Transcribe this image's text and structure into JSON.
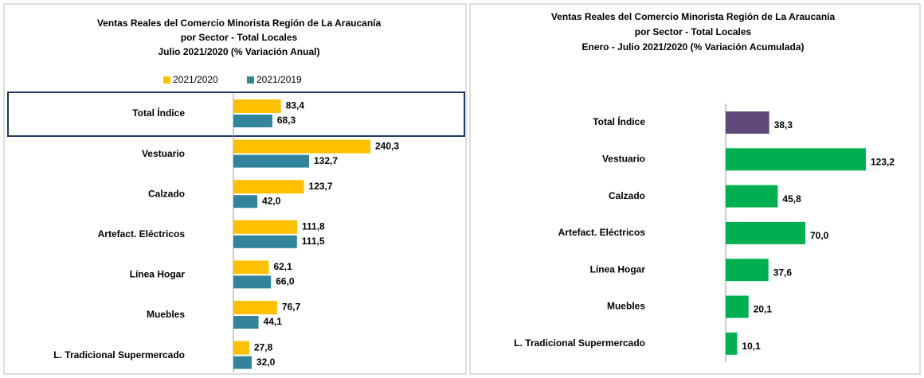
{
  "chart_data": [
    {
      "type": "bar",
      "orientation": "horizontal",
      "title": [
        "Ventas Reales del Comercio Minorista  Región de La Araucanía",
        "por Sector  - Total Locales",
        "Julio 2021/2020 (% Variación Anual)"
      ],
      "categories": [
        "Total Índice",
        "Vestuario",
        "Calzado",
        "Artefact. Eléctricos",
        "Línea Hogar",
        "Muebles",
        "L. Tradicional Supermercado"
      ],
      "series": [
        {
          "name": "2021/2020",
          "color": "#FFC000",
          "values": [
            83.4,
            240.3,
            123.7,
            111.8,
            62.1,
            76.7,
            27.8
          ],
          "value_labels": [
            "83,4",
            "240,3",
            "123,7",
            "111,8",
            "62,1",
            "76,7",
            "27,8"
          ]
        },
        {
          "name": "2021/2019",
          "color": "#31849B",
          "values": [
            68.3,
            132.7,
            42.0,
            111.5,
            66.0,
            44.1,
            32.0
          ],
          "value_labels": [
            "68,3",
            "132,7",
            "42,0",
            "111,5",
            "66,0",
            "44,1",
            "32,0"
          ]
        }
      ],
      "legend": "top"
    },
    {
      "type": "bar",
      "orientation": "horizontal",
      "title": [
        "Ventas Reales del Comercio Minorista Región de La Araucanía",
        "por Sector - Total Locales",
        "Enero - Julio 2021/2020 (% Variación Acumulada)"
      ],
      "categories": [
        "Total Índice",
        "Vestuario",
        "Calzado",
        "Artefact. Eléctricos",
        "Línea Hogar",
        "Muebles",
        "L. Tradicional Supermercado"
      ],
      "values": [
        38.3,
        123.2,
        45.8,
        70.0,
        37.6,
        20.1,
        10.1
      ],
      "value_labels": [
        "38,3",
        "123,2",
        "45,8",
        "70,0",
        "37,6",
        "20,1",
        "10,1"
      ],
      "colors": [
        "#604A7B",
        "#00B050",
        "#00B050",
        "#00B050",
        "#00B050",
        "#00B050",
        "#00B050"
      ]
    }
  ]
}
